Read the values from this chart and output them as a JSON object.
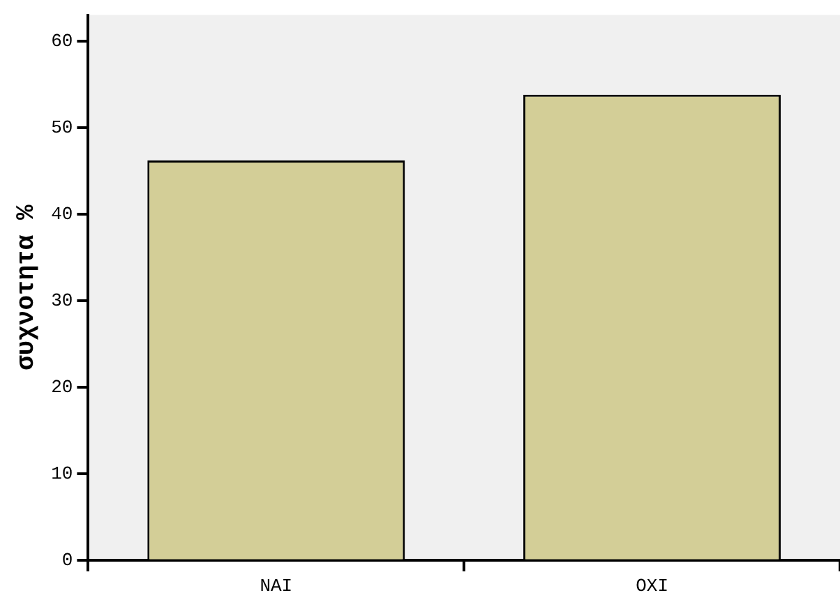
{
  "chart_data": {
    "type": "bar",
    "ylabel": "συχνοτητα %",
    "categories": [
      "ΝΑΙ",
      "ΟΧΙ"
    ],
    "values": [
      46.2,
      53.8
    ],
    "color": "#d3ce97",
    "ylim": [
      0,
      63
    ],
    "yticks": [
      0,
      10,
      20,
      30,
      40,
      50,
      60
    ],
    "grid": false,
    "legend": false
  }
}
